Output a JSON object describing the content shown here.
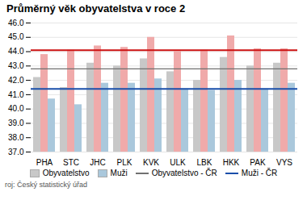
{
  "chart_data": {
    "type": "bar",
    "title": "Průměrný věk obyvatelstva v roce 2",
    "categories": [
      "PHA",
      "STC",
      "JHC",
      "PLK",
      "KVK",
      "ULK",
      "LBK",
      "HKK",
      "PAK",
      "VYS"
    ],
    "series": [
      {
        "name": "Obyvatelstvo",
        "color": "#c8c8c8",
        "values": [
          42.2,
          41.5,
          43.2,
          43.0,
          43.5,
          42.6,
          42.0,
          43.6,
          43.0,
          43.2
        ]
      },
      {
        "color": "#f0aaaa",
        "values": [
          43.8,
          44.1,
          44.4,
          44.3,
          45.0,
          44.0,
          44.1,
          45.1,
          44.2,
          44.2
        ]
      },
      {
        "name": "Muži",
        "color": "#aac8dc",
        "values": [
          40.7,
          40.3,
          41.8,
          41.8,
          42.1,
          41.4,
          41.3,
          42.0,
          41.4,
          41.8
        ]
      }
    ],
    "reference_lines": [
      {
        "name": "Obyvatelstvo - ČR",
        "value": 42.8,
        "color": "#707070"
      },
      {
        "value": 44.1,
        "color": "#cc1111"
      },
      {
        "name": "Muži - ČR",
        "value": 41.4,
        "color": "#1a4faa"
      }
    ],
    "ylim": [
      37.0,
      46.0
    ],
    "yticks": [
      {
        "value": 37.0,
        "label": "37.0"
      },
      {
        "value": 38.0,
        "label": "38.0"
      },
      {
        "value": 39.0,
        "label": "39.0"
      },
      {
        "value": 40.0,
        "label": "40.0"
      },
      {
        "value": 41.0,
        "label": "41.0"
      },
      {
        "value": 42.0,
        "label": "42.0"
      },
      {
        "value": 43.0,
        "label": "43.0"
      },
      {
        "value": 44.0,
        "label": "44.0"
      },
      {
        "value": 45.0,
        "label": "45.0"
      },
      {
        "value": 46.0,
        "label": "46.0"
      }
    ],
    "grid": true,
    "legend": "bottom",
    "source": "roj: Český statistický úřad"
  }
}
